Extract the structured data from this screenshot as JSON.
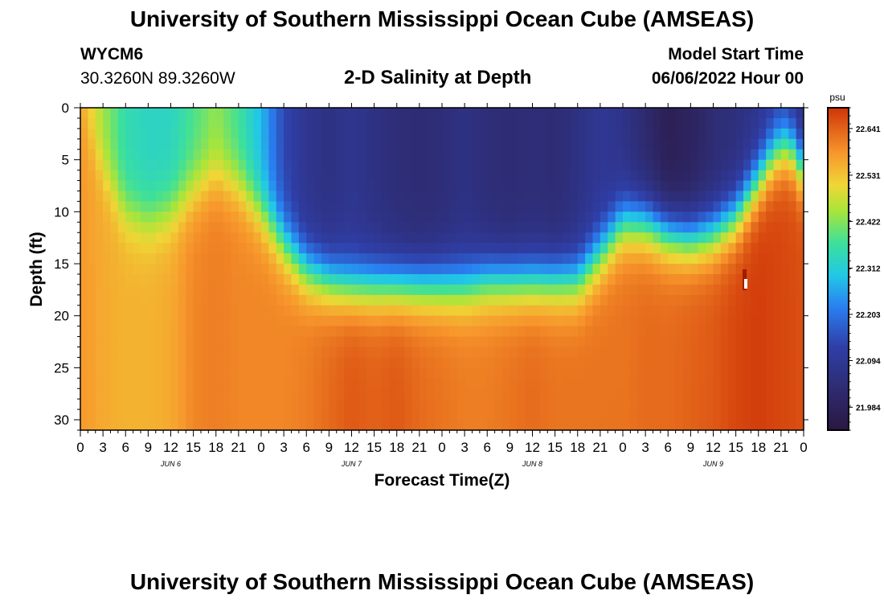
{
  "page": {
    "title_top": "University of Southern Mississippi Ocean Cube (AMSEAS)",
    "title_bottom": "University of Southern Mississippi Ocean Cube (AMSEAS)"
  },
  "header": {
    "station_id": "WYCM6",
    "coordinates": "30.3260N  89.3260W",
    "chart_title": "2-D Salinity at Depth",
    "model_start_label": "Model Start Time",
    "model_start_value": "06/06/2022 Hour 00"
  },
  "chart_data": {
    "type": "heatmap",
    "title": "2-D Salinity at Depth",
    "xlabel": "Forecast Time(Z)",
    "ylabel": "Depth (ft)",
    "x_range_hours": [
      0,
      96
    ],
    "ylim": [
      0,
      31
    ],
    "y_inverted": true,
    "x_tick_labels": [
      "0",
      "3",
      "6",
      "9",
      "12",
      "15",
      "18",
      "21",
      "0",
      "3",
      "6",
      "9",
      "12",
      "15",
      "18",
      "21",
      "0",
      "3",
      "6",
      "9",
      "12",
      "15",
      "18",
      "21",
      "0",
      "3",
      "6",
      "9",
      "12",
      "15",
      "18",
      "21",
      "0"
    ],
    "y_ticks": [
      0,
      5,
      10,
      15,
      20,
      25,
      30
    ],
    "day_labels": [
      "JUN 6",
      "JUN 7",
      "JUN 8",
      "JUN 9"
    ],
    "colorbar": {
      "unit": "psu",
      "min": 21.93,
      "max": 22.69,
      "ticks": [
        22.641,
        22.531,
        22.422,
        22.312,
        22.203,
        22.094,
        21.984
      ]
    },
    "interface_depth_ft": [
      [
        0,
        0.5
      ],
      [
        3,
        6
      ],
      [
        6,
        10
      ],
      [
        9,
        11
      ],
      [
        12,
        10
      ],
      [
        15,
        8
      ],
      [
        18,
        6.5
      ],
      [
        21,
        7.5
      ],
      [
        24,
        10
      ],
      [
        27,
        13
      ],
      [
        30,
        15.5
      ],
      [
        33,
        16.5
      ],
      [
        36,
        17
      ],
      [
        39,
        17
      ],
      [
        42,
        17
      ],
      [
        45,
        17
      ],
      [
        48,
        17
      ],
      [
        51,
        17
      ],
      [
        54,
        16.5
      ],
      [
        57,
        16.5
      ],
      [
        60,
        16.5
      ],
      [
        63,
        16.5
      ],
      [
        66,
        16.5
      ],
      [
        69,
        14
      ],
      [
        72,
        11
      ],
      [
        75,
        11
      ],
      [
        78,
        12
      ],
      [
        81,
        12.5
      ],
      [
        84,
        12
      ],
      [
        87,
        10.5
      ],
      [
        90,
        7
      ],
      [
        92,
        4.5
      ],
      [
        94,
        3.5
      ],
      [
        96,
        6
      ]
    ],
    "surface_salinity_psu": [
      [
        0,
        22.56
      ],
      [
        3,
        22.44
      ],
      [
        6,
        22.35
      ],
      [
        9,
        22.33
      ],
      [
        12,
        22.33
      ],
      [
        15,
        22.38
      ],
      [
        18,
        22.43
      ],
      [
        21,
        22.37
      ],
      [
        24,
        22.28
      ],
      [
        27,
        22.14
      ],
      [
        30,
        22.08
      ],
      [
        33,
        22.06
      ],
      [
        36,
        22.08
      ],
      [
        39,
        22.06
      ],
      [
        42,
        22.04
      ],
      [
        45,
        22.03
      ],
      [
        48,
        22.04
      ],
      [
        51,
        22.06
      ],
      [
        54,
        22.04
      ],
      [
        57,
        22.03
      ],
      [
        60,
        22.04
      ],
      [
        63,
        22.03
      ],
      [
        66,
        22.06
      ],
      [
        69,
        22.09
      ],
      [
        72,
        22.07
      ],
      [
        75,
        22.02
      ],
      [
        78,
        21.97
      ],
      [
        81,
        21.99
      ],
      [
        84,
        22.03
      ],
      [
        87,
        22.05
      ],
      [
        90,
        22.08
      ],
      [
        93,
        22.12
      ],
      [
        96,
        22.05
      ]
    ],
    "deep_salinity_psu": [
      [
        0,
        22.58
      ],
      [
        3,
        22.56
      ],
      [
        6,
        22.55
      ],
      [
        9,
        22.55
      ],
      [
        12,
        22.56
      ],
      [
        15,
        22.6
      ],
      [
        18,
        22.61
      ],
      [
        21,
        22.6
      ],
      [
        24,
        22.6
      ],
      [
        27,
        22.6
      ],
      [
        30,
        22.61
      ],
      [
        33,
        22.63
      ],
      [
        36,
        22.65
      ],
      [
        39,
        22.64
      ],
      [
        42,
        22.65
      ],
      [
        45,
        22.63
      ],
      [
        48,
        22.62
      ],
      [
        51,
        22.61
      ],
      [
        54,
        22.61
      ],
      [
        57,
        22.62
      ],
      [
        60,
        22.63
      ],
      [
        63,
        22.62
      ],
      [
        66,
        22.62
      ],
      [
        69,
        22.62
      ],
      [
        72,
        22.62
      ],
      [
        75,
        22.63
      ],
      [
        78,
        22.63
      ],
      [
        81,
        22.64
      ],
      [
        84,
        22.65
      ],
      [
        87,
        22.67
      ],
      [
        90,
        22.68
      ],
      [
        93,
        22.67
      ],
      [
        96,
        22.66
      ]
    ]
  }
}
